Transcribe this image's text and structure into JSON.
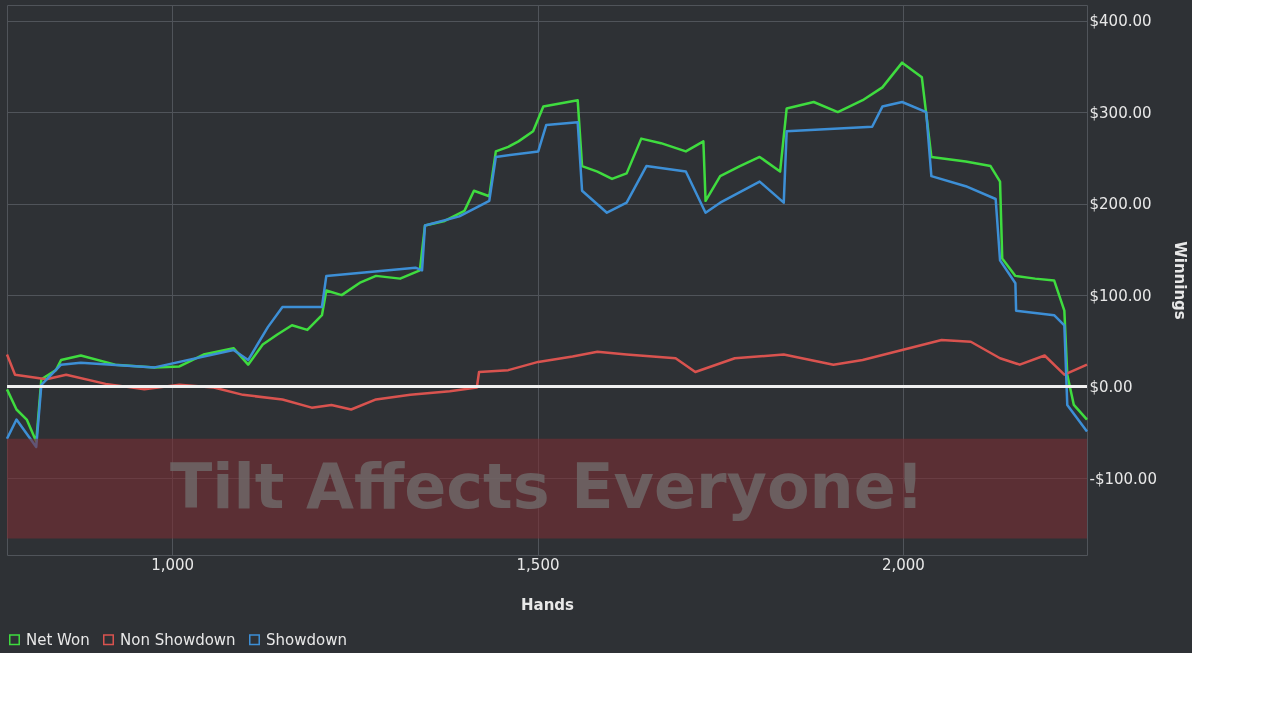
{
  "chart_data": {
    "type": "line",
    "xlabel": "Hands",
    "ylabel": "Winnings",
    "xlim": [
      774,
      2252
    ],
    "ylim": [
      -184,
      417
    ],
    "xticks": [
      {
        "value": 1000,
        "label": "1,000"
      },
      {
        "value": 1500,
        "label": "1,500"
      },
      {
        "value": 2000,
        "label": "2,000"
      }
    ],
    "yticks": [
      {
        "value": -100,
        "label": "-$100.00"
      },
      {
        "value": 0,
        "label": "$0.00"
      },
      {
        "value": 100,
        "label": "$100.00"
      },
      {
        "value": 200,
        "label": "$200.00"
      },
      {
        "value": 300,
        "label": "$300.00"
      },
      {
        "value": 400,
        "label": "$400.00"
      }
    ],
    "grid": true,
    "legend": "bottom left",
    "ref_lines": [
      {
        "axis": "y",
        "value": 0,
        "color": "#f0f0f0"
      }
    ],
    "bands": [
      {
        "axis": "y",
        "from": -166,
        "to": -57,
        "label": "Tilt Affects Everyone!",
        "color": "#7a2f33"
      }
    ],
    "series": [
      {
        "name": "Net Won",
        "color": "#3fdc3f",
        "x": [
          774,
          787,
          801,
          814,
          821,
          841,
          848,
          875,
          922,
          976,
          1010,
          1043,
          1084,
          1104,
          1124,
          1144,
          1164,
          1185,
          1205,
          1211,
          1232,
          1258,
          1279,
          1312,
          1339,
          1346,
          1373,
          1400,
          1413,
          1434,
          1443,
          1460,
          1474,
          1494,
          1508,
          1555,
          1561,
          1582,
          1602,
          1622,
          1642,
          1669,
          1703,
          1727,
          1730,
          1750,
          1777,
          1804,
          1832,
          1841,
          1878,
          1911,
          1945,
          1972,
          1999,
          2026,
          2039,
          2086,
          2120,
          2133,
          2136,
          2154,
          2181,
          2207,
          2221,
          2225,
          2234,
          2252
        ],
        "values": [
          -3,
          -25,
          -36,
          -60,
          8,
          18,
          29,
          34,
          24,
          21,
          22,
          35,
          42,
          24,
          46,
          57,
          67,
          62,
          78,
          105,
          100,
          114,
          121,
          118,
          127,
          176,
          181,
          192,
          214,
          208,
          257,
          262,
          268,
          279,
          306,
          313,
          241,
          235,
          227,
          233,
          271,
          266,
          257,
          268,
          203,
          230,
          241,
          251,
          235,
          304,
          311,
          300,
          313,
          327,
          354,
          338,
          251,
          246,
          241,
          224,
          140,
          121,
          118,
          116,
          83,
          13,
          -20,
          -36
        ]
      },
      {
        "name": "Non Showdown",
        "color": "#d9534f",
        "x": [
          774,
          785,
          828,
          855,
          909,
          962,
          1010,
          1057,
          1097,
          1151,
          1191,
          1218,
          1245,
          1279,
          1326,
          1380,
          1417,
          1420,
          1460,
          1501,
          1548,
          1582,
          1622,
          1689,
          1716,
          1770,
          1837,
          1905,
          1945,
          1999,
          2053,
          2093,
          2133,
          2160,
          2194,
          2221,
          2252
        ],
        "values": [
          35,
          13,
          8,
          13,
          3,
          -3,
          2,
          -1,
          -9,
          -14,
          -23,
          -20,
          -25,
          -14,
          -9,
          -5,
          -1,
          16,
          18,
          27,
          33,
          38,
          35,
          31,
          16,
          31,
          35,
          24,
          29,
          40,
          51,
          49,
          31,
          24,
          34,
          13,
          24
        ]
      },
      {
        "name": "Showdown",
        "color": "#3d8fd6",
        "x": [
          774,
          787,
          814,
          821,
          848,
          875,
          976,
          1084,
          1104,
          1131,
          1151,
          1205,
          1211,
          1333,
          1342,
          1346,
          1393,
          1434,
          1443,
          1501,
          1512,
          1555,
          1561,
          1595,
          1622,
          1649,
          1703,
          1730,
          1750,
          1804,
          1837,
          1841,
          1958,
          1972,
          1999,
          2032,
          2039,
          2086,
          2127,
          2133,
          2154,
          2155,
          2207,
          2221,
          2225,
          2252
        ],
        "values": [
          -57,
          -36,
          -66,
          2,
          24,
          26,
          21,
          40,
          29,
          65,
          87,
          87,
          121,
          130,
          127,
          176,
          186,
          203,
          251,
          257,
          286,
          289,
          214,
          190,
          201,
          241,
          235,
          190,
          201,
          224,
          201,
          279,
          284,
          306,
          311,
          300,
          230,
          219,
          205,
          138,
          113,
          83,
          78,
          67,
          -20,
          -49
        ]
      }
    ]
  }
}
